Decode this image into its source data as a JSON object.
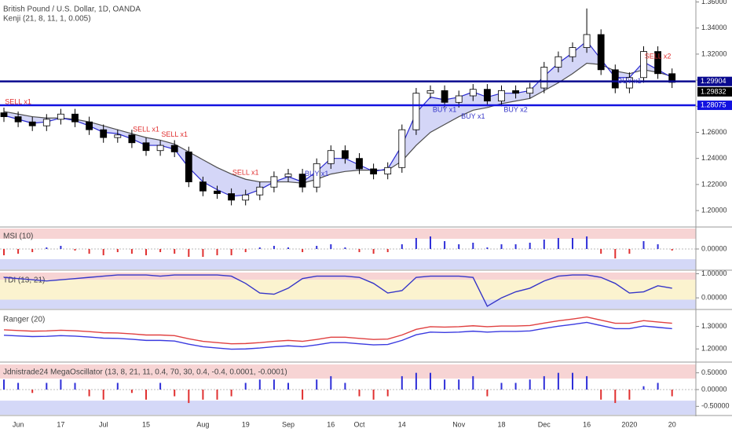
{
  "chart_data": [
    {
      "type": "candlestick",
      "title": "British Pound / U.S. Dollar, 1D, OANDA",
      "subtitle": "Kenji (21, 8, 11, 1, 0.005)",
      "x": [
        null,
        "Jun",
        null,
        null,
        "17",
        null,
        null,
        "Jul",
        null,
        null,
        "15",
        null,
        null,
        null,
        "Aug",
        null,
        null,
        "19",
        null,
        null,
        "Sep",
        null,
        null,
        "16",
        null,
        "Oct",
        null,
        null,
        "14",
        null,
        null,
        null,
        "Nov",
        null,
        null,
        "18",
        null,
        null,
        "Dec",
        null,
        null,
        "16",
        null,
        null,
        "2020",
        null,
        null,
        "20"
      ],
      "open": [
        1.275,
        1.272,
        1.268,
        1.265,
        1.27,
        1.274,
        1.268,
        1.262,
        1.256,
        1.258,
        1.252,
        1.246,
        1.25,
        1.245,
        1.222,
        1.215,
        1.213,
        1.208,
        1.212,
        1.218,
        1.226,
        1.228,
        1.218,
        1.236,
        1.246,
        1.24,
        1.232,
        1.228,
        1.233,
        1.262,
        1.29,
        1.292,
        1.283,
        1.288,
        1.293,
        1.284,
        1.292,
        1.29,
        1.294,
        1.31,
        1.318,
        1.325,
        1.335,
        1.308,
        1.294,
        1.302,
        1.322,
        1.305
      ],
      "high": [
        1.279,
        1.276,
        1.272,
        1.274,
        1.278,
        1.278,
        1.272,
        1.266,
        1.262,
        1.262,
        1.256,
        1.254,
        1.254,
        1.249,
        1.226,
        1.219,
        1.217,
        1.216,
        1.222,
        1.23,
        1.232,
        1.232,
        1.24,
        1.25,
        1.25,
        1.244,
        1.236,
        1.237,
        1.266,
        1.294,
        1.296,
        1.296,
        1.292,
        1.297,
        1.297,
        1.296,
        1.296,
        1.298,
        1.314,
        1.322,
        1.329,
        1.355,
        1.339,
        1.312,
        1.306,
        1.326,
        1.326,
        1.309
      ],
      "low": [
        1.268,
        1.264,
        1.261,
        1.261,
        1.266,
        1.264,
        1.258,
        1.252,
        1.252,
        1.248,
        1.242,
        1.242,
        1.241,
        1.218,
        1.211,
        1.209,
        1.204,
        1.204,
        1.208,
        1.214,
        1.222,
        1.214,
        1.214,
        1.232,
        1.236,
        1.228,
        1.224,
        1.224,
        1.229,
        1.258,
        1.286,
        1.279,
        1.279,
        1.284,
        1.28,
        1.28,
        1.286,
        1.286,
        1.29,
        1.306,
        1.314,
        1.321,
        1.304,
        1.29,
        1.29,
        1.298,
        1.301,
        1.294
      ],
      "close": [
        1.272,
        1.268,
        1.265,
        1.27,
        1.274,
        1.268,
        1.262,
        1.256,
        1.258,
        1.252,
        1.246,
        1.25,
        1.245,
        1.222,
        1.215,
        1.213,
        1.208,
        1.212,
        1.218,
        1.226,
        1.228,
        1.218,
        1.236,
        1.246,
        1.24,
        1.232,
        1.228,
        1.233,
        1.262,
        1.29,
        1.292,
        1.283,
        1.288,
        1.293,
        1.284,
        1.292,
        1.29,
        1.294,
        1.31,
        1.318,
        1.325,
        1.335,
        1.308,
        1.294,
        1.302,
        1.322,
        1.305,
        1.2983
      ],
      "up_color": "#ffffff",
      "down_color": "#000000",
      "series": [
        {
          "color": "#4d4d4d",
          "values": [
            1.276,
            1.274,
            1.272,
            1.271,
            1.271,
            1.27,
            1.268,
            1.265,
            1.262,
            1.259,
            1.256,
            1.254,
            1.251,
            1.245,
            1.239,
            1.233,
            1.228,
            1.224,
            1.222,
            1.222,
            1.222,
            1.221,
            1.224,
            1.228,
            1.23,
            1.231,
            1.231,
            1.231,
            1.238,
            1.25,
            1.26,
            1.266,
            1.272,
            1.277,
            1.279,
            1.282,
            1.284,
            1.286,
            1.292,
            1.298,
            1.305,
            1.313,
            1.312,
            1.307,
            1.305,
            1.308,
            1.306,
            1.303
          ]
        },
        {
          "color": "#2a2ad0",
          "values": [
            1.273,
            1.27,
            1.267,
            1.268,
            1.271,
            1.269,
            1.265,
            1.26,
            1.259,
            1.255,
            1.25,
            1.25,
            1.247,
            1.233,
            1.222,
            1.216,
            1.211,
            1.212,
            1.216,
            1.222,
            1.226,
            1.222,
            1.23,
            1.24,
            1.24,
            1.235,
            1.23,
            1.232,
            1.25,
            1.275,
            1.287,
            1.285,
            1.287,
            1.291,
            1.287,
            1.29,
            1.29,
            1.292,
            1.303,
            1.313,
            1.321,
            1.33,
            1.316,
            1.302,
            1.302,
            1.314,
            1.308,
            1.302
          ]
        }
      ],
      "fill_color": "#c9ccf5",
      "ylim": [
        1.188,
        1.3603
      ],
      "yticks": [
        {
          "value": 1.2,
          "label": "1.20000"
        },
        {
          "value": 1.22,
          "label": "1.22000"
        },
        {
          "value": 1.24,
          "label": "1.24000"
        },
        {
          "value": 1.26,
          "label": "1.26000"
        },
        {
          "value": 1.28,
          "label": "1.28000"
        },
        {
          "value": 1.3,
          "label": "1.30000"
        },
        {
          "value": 1.32,
          "label": "1.32000"
        },
        {
          "value": 1.34,
          "label": "1.34000"
        },
        {
          "value": 1.36,
          "label": "1.36000"
        }
      ],
      "hlines": [
        {
          "value": 1.29904,
          "label": "1.29904",
          "color": "#0a0a8f"
        },
        {
          "value": 1.28075,
          "label": "1.28075",
          "color": "#1212e0"
        }
      ],
      "last_price": {
        "value": 1.29832,
        "label": "1.29832",
        "color": "#000000"
      },
      "annotations": [
        {
          "text": "SELL x1",
          "x": 1,
          "y": 1.283,
          "color": "#e03030"
        },
        {
          "text": "SELL x1",
          "x": 10,
          "y": 1.262,
          "color": "#e03030"
        },
        {
          "text": "SELL x1",
          "x": 12,
          "y": 1.258,
          "color": "#e03030"
        },
        {
          "text": "SELL x1",
          "x": 17,
          "y": 1.229,
          "color": "#e03030"
        },
        {
          "text": "BUY x1",
          "x": 22,
          "y": 1.228,
          "color": "#3535c8"
        },
        {
          "text": "BUY x1",
          "x": 31,
          "y": 1.277,
          "color": "#3535c8"
        },
        {
          "text": "BUY x1",
          "x": 33,
          "y": 1.272,
          "color": "#3535c8"
        },
        {
          "text": "BUY x2",
          "x": 36,
          "y": 1.277,
          "color": "#3535c8"
        },
        {
          "text": "BUY x1",
          "x": 44,
          "y": 1.299,
          "color": "#3535c8"
        },
        {
          "text": "SELL x2",
          "x": 46,
          "y": 1.318,
          "color": "#e03030"
        }
      ]
    },
    {
      "type": "bar",
      "title": "MSI (10)",
      "up_color": "#2f2fd8",
      "down_color": "#e03030",
      "values": [
        -0.4,
        -0.3,
        -0.2,
        0.1,
        0.2,
        -0.1,
        -0.3,
        -0.4,
        -0.2,
        -0.3,
        -0.4,
        -0.2,
        -0.3,
        -0.5,
        -0.5,
        -0.4,
        -0.4,
        -0.2,
        0.1,
        0.2,
        0.1,
        -0.2,
        0.2,
        0.3,
        0.1,
        -0.2,
        -0.3,
        -0.2,
        0.3,
        0.7,
        0.8,
        0.5,
        0.3,
        0.4,
        0.1,
        0.3,
        0.3,
        0.4,
        0.6,
        0.7,
        0.7,
        0.8,
        -0.3,
        -0.6,
        -0.3,
        0.5,
        0.3,
        -0.1
      ],
      "ylim": [
        -1.3,
        1.3
      ],
      "yticks": [
        {
          "value": 0,
          "label": "0.00000"
        }
      ]
    },
    {
      "type": "line",
      "title": "TDI (13, 21)",
      "series": [
        {
          "color": "#3535c8",
          "values": [
            0.85,
            0.8,
            0.75,
            0.7,
            0.75,
            0.8,
            0.85,
            0.9,
            0.95,
            0.95,
            0.95,
            0.9,
            0.95,
            0.95,
            0.95,
            0.95,
            0.9,
            0.6,
            0.2,
            0.15,
            0.4,
            0.8,
            0.9,
            0.9,
            0.9,
            0.85,
            0.6,
            0.2,
            0.3,
            0.85,
            0.9,
            0.9,
            0.9,
            0.85,
            -0.35,
            0.0,
            0.25,
            0.4,
            0.7,
            0.9,
            0.95,
            0.95,
            0.85,
            0.6,
            0.2,
            0.25,
            0.5,
            0.4
          ]
        }
      ],
      "ylim": [
        -0.45,
        1.05
      ],
      "yticks": [
        {
          "value": 1,
          "label": "1.00000"
        },
        {
          "value": 0,
          "label": "0.00000"
        }
      ]
    },
    {
      "type": "line",
      "title": "Ranger (20)",
      "series": [
        {
          "color": "#e04040",
          "values": [
            1.285,
            1.282,
            1.279,
            1.28,
            1.283,
            1.281,
            1.277,
            1.272,
            1.271,
            1.267,
            1.262,
            1.262,
            1.259,
            1.245,
            1.234,
            1.228,
            1.223,
            1.224,
            1.228,
            1.234,
            1.238,
            1.234,
            1.242,
            1.252,
            1.252,
            1.247,
            1.242,
            1.244,
            1.262,
            1.287,
            1.299,
            1.297,
            1.299,
            1.303,
            1.299,
            1.302,
            1.302,
            1.304,
            1.315,
            1.325,
            1.333,
            1.342,
            1.328,
            1.314,
            1.314,
            1.326,
            1.32,
            1.314
          ]
        },
        {
          "color": "#3a3ae0",
          "values": [
            1.261,
            1.258,
            1.255,
            1.256,
            1.259,
            1.257,
            1.253,
            1.248,
            1.247,
            1.243,
            1.238,
            1.238,
            1.235,
            1.221,
            1.21,
            1.204,
            1.199,
            1.2,
            1.204,
            1.21,
            1.214,
            1.21,
            1.218,
            1.228,
            1.228,
            1.223,
            1.218,
            1.22,
            1.238,
            1.263,
            1.275,
            1.273,
            1.275,
            1.279,
            1.275,
            1.278,
            1.278,
            1.28,
            1.291,
            1.301,
            1.309,
            1.318,
            1.304,
            1.29,
            1.29,
            1.302,
            1.296,
            1.29
          ]
        }
      ],
      "ylim": [
        1.145,
        1.365
      ],
      "yticks": [
        {
          "value": 1.3,
          "label": "1.30000"
        },
        {
          "value": 1.2,
          "label": "1.20000"
        }
      ]
    },
    {
      "type": "bar",
      "title": "Jdnistrade24 MegaOscillator (13, 8, 21, 11, 0.4, 70, 30, 0.4, -0.4, 0.0001, -0.0001)",
      "up_color": "#2f2fd8",
      "down_color": "#e03030",
      "values": [
        0.3,
        0.2,
        -0.1,
        0.2,
        0.3,
        0.2,
        -0.2,
        -0.3,
        0.2,
        -0.1,
        -0.3,
        0.2,
        -0.2,
        -0.4,
        -0.3,
        -0.3,
        -0.2,
        0.2,
        0.3,
        0.3,
        0.2,
        -0.3,
        0.3,
        0.4,
        0.2,
        -0.2,
        -0.3,
        -0.2,
        0.4,
        0.5,
        0.5,
        0.3,
        0.3,
        0.4,
        -0.2,
        0.2,
        0.2,
        0.3,
        0.4,
        0.5,
        0.5,
        0.4,
        -0.3,
        -0.4,
        -0.3,
        0.1,
        0.2,
        -0.2
      ],
      "ylim": [
        -0.75,
        0.75
      ],
      "yticks": [
        {
          "value": 0.5,
          "label": "0.50000"
        },
        {
          "value": 0,
          "label": "0.00000"
        },
        {
          "value": -0.5,
          "label": "-0.50000"
        }
      ]
    }
  ]
}
